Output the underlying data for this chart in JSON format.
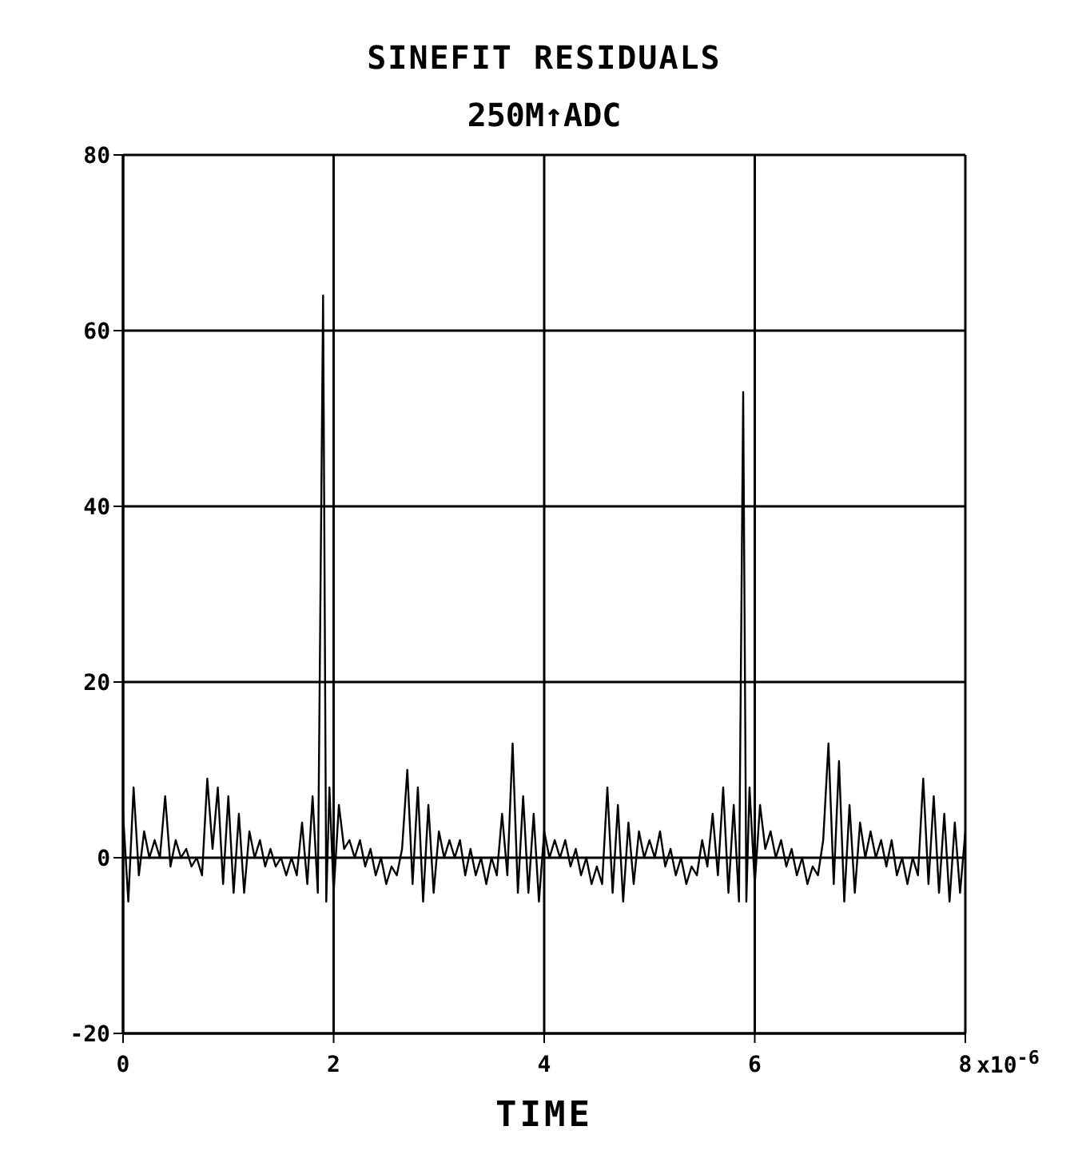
{
  "chart_data": {
    "type": "line",
    "title": "SINEFIT RESIDUALS",
    "subtitle": "250M↑ADC",
    "xlabel": "TIME",
    "xlim": [
      0,
      8
    ],
    "ylim": [
      -20,
      80
    ],
    "yticks": [
      -20,
      0,
      20,
      40,
      60,
      80
    ],
    "xticks": [
      0,
      2,
      4,
      6,
      8
    ],
    "annotations": [
      "x10$^{-6}$"
    ],
    "grid": true,
    "marker": "none",
    "line_style": "solid",
    "series": [
      {
        "color": "#000000",
        "x": [
          0,
          0.05,
          0.1,
          0.15,
          0.2,
          0.25,
          0.3,
          0.35,
          0.4,
          0.45,
          0.5,
          0.55,
          0.6,
          0.65,
          0.7,
          0.75,
          0.8,
          0.85,
          0.9,
          0.95,
          1.0,
          1.05,
          1.1,
          1.15,
          1.2,
          1.25,
          1.3,
          1.35,
          1.4,
          1.45,
          1.5,
          1.55,
          1.6,
          1.65,
          1.7,
          1.75,
          1.8,
          1.85,
          1.9,
          1.93,
          1.96,
          2.0,
          2.05,
          2.1,
          2.15,
          2.2,
          2.25,
          2.3,
          2.35,
          2.4,
          2.45,
          2.5,
          2.55,
          2.6,
          2.65,
          2.7,
          2.75,
          2.8,
          2.85,
          2.9,
          2.95,
          3.0,
          3.05,
          3.1,
          3.15,
          3.2,
          3.25,
          3.3,
          3.35,
          3.4,
          3.45,
          3.5,
          3.55,
          3.6,
          3.65,
          3.7,
          3.75,
          3.8,
          3.85,
          3.9,
          3.95,
          4.0,
          4.05,
          4.1,
          4.15,
          4.2,
          4.25,
          4.3,
          4.35,
          4.4,
          4.45,
          4.5,
          4.55,
          4.6,
          4.65,
          4.7,
          4.75,
          4.8,
          4.85,
          4.9,
          4.95,
          5.0,
          5.05,
          5.1,
          5.15,
          5.2,
          5.25,
          5.3,
          5.35,
          5.4,
          5.45,
          5.5,
          5.55,
          5.6,
          5.65,
          5.7,
          5.75,
          5.8,
          5.85,
          5.89,
          5.92,
          5.95,
          6.0,
          6.05,
          6.1,
          6.15,
          6.2,
          6.25,
          6.3,
          6.35,
          6.4,
          6.45,
          6.5,
          6.55,
          6.6,
          6.65,
          6.7,
          6.75,
          6.8,
          6.85,
          6.9,
          6.95,
          7.0,
          7.05,
          7.1,
          7.15,
          7.2,
          7.25,
          7.3,
          7.35,
          7.4,
          7.45,
          7.5,
          7.55,
          7.6,
          7.65,
          7.7,
          7.75,
          7.8,
          7.85,
          7.9,
          7.95,
          8.0
        ],
        "values": [
          5,
          -5,
          8,
          -2,
          3,
          0,
          2,
          0,
          7,
          -1,
          2,
          0,
          1,
          -1,
          0,
          -2,
          9,
          1,
          8,
          -3,
          7,
          -4,
          5,
          -4,
          3,
          0,
          2,
          -1,
          1,
          -1,
          0,
          -2,
          0,
          -2,
          4,
          -3,
          7,
          -4,
          64,
          -5,
          8,
          -4,
          6,
          1,
          2,
          0,
          2,
          -1,
          1,
          -2,
          0,
          -3,
          -1,
          -2,
          1,
          10,
          -3,
          8,
          -5,
          6,
          -4,
          3,
          0,
          2,
          0,
          2,
          -2,
          1,
          -2,
          0,
          -3,
          0,
          -2,
          5,
          -2,
          13,
          -4,
          7,
          -4,
          5,
          -5,
          3,
          0,
          2,
          0,
          2,
          -1,
          1,
          -2,
          0,
          -3,
          -1,
          -3,
          8,
          -4,
          6,
          -5,
          4,
          -3,
          3,
          0,
          2,
          0,
          3,
          -1,
          1,
          -2,
          0,
          -3,
          -1,
          -2,
          2,
          -1,
          5,
          -2,
          8,
          -4,
          6,
          -5,
          53,
          -5,
          8,
          -3,
          6,
          1,
          3,
          0,
          2,
          -1,
          1,
          -2,
          0,
          -3,
          -1,
          -2,
          2,
          13,
          -3,
          11,
          -5,
          6,
          -4,
          4,
          0,
          3,
          0,
          2,
          -1,
          2,
          -2,
          0,
          -3,
          0,
          -2,
          9,
          -3,
          7,
          -4,
          5,
          -5,
          4,
          -4,
          3
        ]
      }
    ]
  }
}
